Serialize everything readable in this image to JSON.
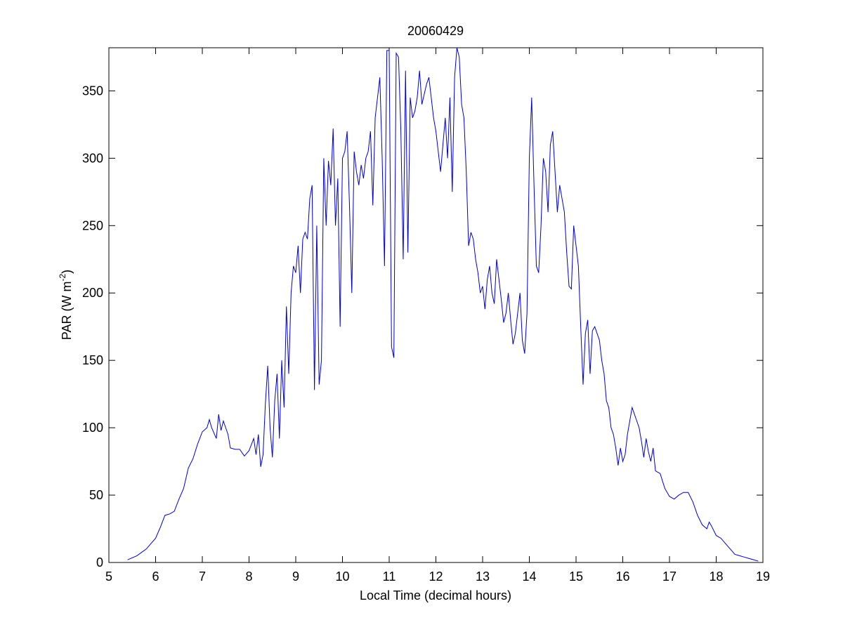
{
  "chart_data": {
    "type": "line",
    "title": "20060429",
    "xlabel": "Local Time (decimal hours)",
    "ylabel_parts": [
      "PAR (W m",
      "-2",
      ")"
    ],
    "xlim": [
      5,
      19
    ],
    "ylim": [
      0,
      382
    ],
    "xticks": [
      5,
      6,
      7,
      8,
      9,
      10,
      11,
      12,
      13,
      14,
      15,
      16,
      17,
      18,
      19
    ],
    "yticks": [
      0,
      50,
      100,
      150,
      200,
      250,
      300,
      350
    ],
    "grid": false,
    "series": [
      {
        "color": "#0000cc",
        "x": [
          5.4,
          5.6,
          5.8,
          6.0,
          6.1,
          6.2,
          6.3,
          6.4,
          6.5,
          6.6,
          6.7,
          6.8,
          6.9,
          7.0,
          7.1,
          7.15,
          7.2,
          7.25,
          7.3,
          7.35,
          7.4,
          7.45,
          7.5,
          7.55,
          7.6,
          7.7,
          7.8,
          7.9,
          8.0,
          8.1,
          8.15,
          8.2,
          8.25,
          8.3,
          8.35,
          8.4,
          8.45,
          8.5,
          8.55,
          8.6,
          8.65,
          8.7,
          8.75,
          8.8,
          8.85,
          8.9,
          8.95,
          9.0,
          9.05,
          9.1,
          9.15,
          9.2,
          9.25,
          9.3,
          9.35,
          9.4,
          9.45,
          9.5,
          9.55,
          9.6,
          9.65,
          9.7,
          9.75,
          9.8,
          9.85,
          9.9,
          9.95,
          10.0,
          10.05,
          10.1,
          10.15,
          10.2,
          10.25,
          10.3,
          10.35,
          10.4,
          10.45,
          10.5,
          10.55,
          10.6,
          10.65,
          10.7,
          10.75,
          10.8,
          10.85,
          10.9,
          10.95,
          11.0,
          11.05,
          11.1,
          11.15,
          11.2,
          11.25,
          11.3,
          11.35,
          11.4,
          11.45,
          11.5,
          11.55,
          11.6,
          11.65,
          11.7,
          11.8,
          11.85,
          11.9,
          11.95,
          12.0,
          12.05,
          12.1,
          12.15,
          12.2,
          12.25,
          12.3,
          12.35,
          12.4,
          12.45,
          12.5,
          12.55,
          12.6,
          12.65,
          12.7,
          12.75,
          12.8,
          12.85,
          12.9,
          12.95,
          13.0,
          13.05,
          13.1,
          13.15,
          13.2,
          13.25,
          13.3,
          13.35,
          13.4,
          13.45,
          13.5,
          13.55,
          13.6,
          13.65,
          13.7,
          13.75,
          13.8,
          13.85,
          13.9,
          13.95,
          14.0,
          14.05,
          14.1,
          14.15,
          14.2,
          14.25,
          14.3,
          14.35,
          14.4,
          14.45,
          14.5,
          14.55,
          14.6,
          14.65,
          14.7,
          14.75,
          14.8,
          14.85,
          14.9,
          14.95,
          15.0,
          15.05,
          15.1,
          15.15,
          15.2,
          15.25,
          15.3,
          15.35,
          15.4,
          15.45,
          15.5,
          15.55,
          15.6,
          15.65,
          15.7,
          15.75,
          15.8,
          15.85,
          15.9,
          15.95,
          16.0,
          16.05,
          16.1,
          16.15,
          16.2,
          16.25,
          16.3,
          16.35,
          16.4,
          16.45,
          16.5,
          16.55,
          16.6,
          16.65,
          16.7,
          16.8,
          16.9,
          17.0,
          17.1,
          17.2,
          17.3,
          17.4,
          17.5,
          17.6,
          17.7,
          17.8,
          17.85,
          17.9,
          18.0,
          18.1,
          18.2,
          18.3,
          18.4,
          18.5,
          18.6,
          18.7,
          18.8,
          18.9
        ],
        "values": [
          2,
          5,
          10,
          18,
          26,
          35,
          36,
          38,
          47,
          55,
          70,
          77,
          88,
          97,
          100,
          106,
          100,
          96,
          92,
          110,
          98,
          105,
          100,
          95,
          85,
          84,
          84,
          79,
          83,
          92,
          80,
          95,
          71,
          80,
          118,
          146,
          100,
          78,
          120,
          140,
          92,
          150,
          115,
          190,
          140,
          200,
          220,
          215,
          235,
          200,
          240,
          245,
          240,
          270,
          280,
          128,
          250,
          132,
          150,
          300,
          250,
          298,
          280,
          322,
          250,
          285,
          175,
          300,
          305,
          320,
          265,
          200,
          305,
          290,
          280,
          295,
          285,
          300,
          305,
          320,
          265,
          330,
          345,
          360,
          300,
          220,
          380,
          380,
          160,
          152,
          378,
          375,
          320,
          225,
          365,
          230,
          345,
          330,
          335,
          345,
          365,
          340,
          355,
          360,
          345,
          330,
          320,
          305,
          290,
          310,
          330,
          300,
          345,
          275,
          360,
          382,
          375,
          340,
          330,
          290,
          235,
          245,
          240,
          225,
          215,
          200,
          205,
          188,
          210,
          220,
          200,
          192,
          225,
          210,
          195,
          178,
          185,
          200,
          180,
          162,
          170,
          185,
          200,
          165,
          155,
          185,
          300,
          345,
          280,
          220,
          215,
          250,
          300,
          290,
          260,
          310,
          320,
          290,
          260,
          280,
          270,
          260,
          230,
          205,
          203,
          250,
          235,
          220,
          175,
          132,
          170,
          180,
          140,
          172,
          175,
          170,
          165,
          150,
          140,
          120,
          115,
          100,
          95,
          85,
          72,
          85,
          75,
          80,
          95,
          105,
          115,
          110,
          105,
          100,
          90,
          78,
          92,
          82,
          75,
          85,
          68,
          66,
          55,
          49,
          47,
          50,
          52,
          52,
          45,
          35,
          28,
          25,
          30,
          27,
          20,
          18,
          14,
          10,
          6,
          5,
          4,
          3,
          2,
          1
        ]
      }
    ]
  }
}
